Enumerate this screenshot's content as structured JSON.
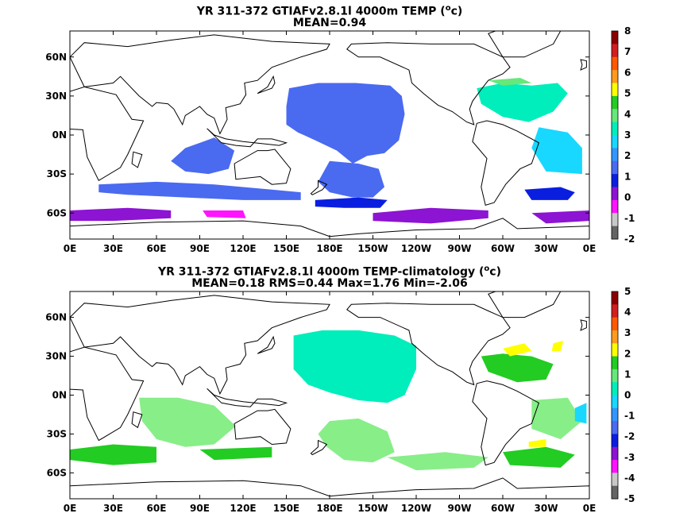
{
  "chart_data": [
    {
      "type": "heatmap",
      "title_prefix": "YR 311-372 GTIAFv2.8.1l 4000m TEMP (",
      "title_unit_base": "o",
      "title_unit_rest": "c)",
      "subtitle": "MEAN=0.94",
      "x_ticks": [
        "0E",
        "30E",
        "60E",
        "90E",
        "120E",
        "150E",
        "180E",
        "150W",
        "120W",
        "90W",
        "60W",
        "30W",
        "0E"
      ],
      "y_ticks": [
        "60N",
        "30N",
        "0N",
        "30S",
        "60S"
      ],
      "y_tick_values": [
        60,
        30,
        0,
        -30,
        -60
      ],
      "x_range": [
        0,
        360
      ],
      "y_range": [
        -80,
        80
      ],
      "colorbar_labels": [
        "8",
        "7",
        "6",
        "5",
        "4",
        "3",
        "2",
        "1",
        "0",
        "-1",
        "-2"
      ],
      "colorbar_values": [
        8,
        7,
        6,
        5,
        4,
        3,
        2,
        1,
        0,
        -1,
        -2
      ],
      "colorbar_colors": [
        "#8b0000",
        "#d21e1e",
        "#ff5a00",
        "#ff9b1e",
        "#ffff00",
        "#22cc22",
        "#66e87a",
        "#00eebb",
        "#18d8ff",
        "#3296ff",
        "#4a6af0",
        "#0a1ee0",
        "#8c14d2",
        "#ff14ff",
        "#c8c8c8",
        "#646464"
      ],
      "regions": [
        {
          "name": "north-pacific",
          "color": "#4a6af0",
          "poly": [
            [
              152,
              36
            ],
            [
              172,
              40
            ],
            [
              198,
              40
            ],
            [
              222,
              38
            ],
            [
              230,
              30
            ],
            [
              232,
              16
            ],
            [
              228,
              -4
            ],
            [
              218,
              -14
            ],
            [
              206,
              -16
            ],
            [
              196,
              -22
            ],
            [
              185,
              -12
            ],
            [
              170,
              -4
            ],
            [
              158,
              2
            ],
            [
              150,
              8
            ],
            [
              150,
              22
            ]
          ]
        },
        {
          "name": "south-pacific",
          "color": "#4a6af0",
          "poly": [
            [
              180,
              -20
            ],
            [
              200,
              -22
            ],
            [
              214,
              -26
            ],
            [
              218,
              -40
            ],
            [
              210,
              -48
            ],
            [
              196,
              -48
            ],
            [
              180,
              -44
            ],
            [
              172,
              -36
            ]
          ]
        },
        {
          "name": "indian-ocean",
          "color": "#4a6af0",
          "poly": [
            [
              80,
              -10
            ],
            [
              100,
              -2
            ],
            [
              114,
              -12
            ],
            [
              110,
              -26
            ],
            [
              96,
              -30
            ],
            [
              80,
              -28
            ],
            [
              70,
              -20
            ]
          ]
        },
        {
          "name": "indian-band",
          "color": "#4a6af0",
          "poly": [
            [
              20,
              -38
            ],
            [
              60,
              -36
            ],
            [
              100,
              -38
            ],
            [
              140,
              -42
            ],
            [
              160,
              -44
            ],
            [
              160,
              -50
            ],
            [
              120,
              -50
            ],
            [
              80,
              -48
            ],
            [
              40,
              -46
            ],
            [
              20,
              -44
            ]
          ]
        },
        {
          "name": "southern-deep",
          "color": "#0a1ee0",
          "poly": [
            [
              170,
              -50
            ],
            [
              200,
              -48
            ],
            [
              220,
              -50
            ],
            [
              215,
              -56
            ],
            [
              190,
              -56
            ],
            [
              170,
              -55
            ]
          ]
        },
        {
          "name": "weddell-deep",
          "color": "#0a1ee0",
          "poly": [
            [
              315,
              -42
            ],
            [
              340,
              -40
            ],
            [
              350,
              -44
            ],
            [
              345,
              -50
            ],
            [
              320,
              -50
            ]
          ]
        },
        {
          "name": "antarctic-1",
          "color": "#8c14d2",
          "poly": [
            [
              0,
              -58
            ],
            [
              40,
              -56
            ],
            [
              70,
              -58
            ],
            [
              70,
              -64
            ],
            [
              30,
              -66
            ],
            [
              0,
              -66
            ]
          ]
        },
        {
          "name": "antarctic-2",
          "color": "#8c14d2",
          "poly": [
            [
              210,
              -60
            ],
            [
              250,
              -56
            ],
            [
              290,
              -58
            ],
            [
              290,
              -64
            ],
            [
              250,
              -68
            ],
            [
              210,
              -66
            ]
          ]
        },
        {
          "name": "antarctic-3",
          "color": "#8c14d2",
          "poly": [
            [
              320,
              -60
            ],
            [
              360,
              -58
            ],
            [
              360,
              -66
            ],
            [
              330,
              -68
            ]
          ]
        },
        {
          "name": "antarctic-magenta",
          "color": "#ff14ff",
          "poly": [
            [
              92,
              -58
            ],
            [
              120,
              -58
            ],
            [
              122,
              -64
            ],
            [
              95,
              -63
            ]
          ]
        },
        {
          "name": "north-atlantic",
          "color": "#00eebb",
          "poly": [
            [
              282,
              36
            ],
            [
              300,
              40
            ],
            [
              320,
              38
            ],
            [
              338,
              40
            ],
            [
              345,
              32
            ],
            [
              335,
              18
            ],
            [
              318,
              10
            ],
            [
              300,
              14
            ],
            [
              285,
              24
            ]
          ]
        },
        {
          "name": "atlantic-green",
          "color": "#66e87a",
          "poly": [
            [
              290,
              42
            ],
            [
              312,
              44
            ],
            [
              320,
              40
            ],
            [
              300,
              38
            ]
          ]
        },
        {
          "name": "south-atlantic",
          "color": "#18d8ff",
          "poly": [
            [
              325,
              6
            ],
            [
              345,
              2
            ],
            [
              355,
              -10
            ],
            [
              355,
              -30
            ],
            [
              330,
              -28
            ],
            [
              320,
              -10
            ]
          ]
        }
      ]
    },
    {
      "type": "heatmap",
      "title_prefix": "YR 311-372 GTIAFv2.8.1l 4000m TEMP-climatology (",
      "title_unit_base": "o",
      "title_unit_rest": "c)",
      "subtitle": "MEAN=0.18   RMS=0.44   Max=1.76   Min=-2.06",
      "x_ticks": [
        "0E",
        "30E",
        "60E",
        "90E",
        "120E",
        "150E",
        "180E",
        "150W",
        "120W",
        "90W",
        "60W",
        "30W",
        "0E"
      ],
      "y_ticks": [
        "60N",
        "30N",
        "0N",
        "30S",
        "60S"
      ],
      "y_tick_values": [
        60,
        30,
        0,
        -30,
        -60
      ],
      "x_range": [
        0,
        360
      ],
      "y_range": [
        -80,
        80
      ],
      "colorbar_labels": [
        "5",
        "4",
        "3",
        "2",
        "1",
        "0",
        "-1",
        "-2",
        "-3",
        "-4",
        "-5"
      ],
      "colorbar_values": [
        5,
        4,
        3,
        2,
        1,
        0,
        -1,
        -2,
        -3,
        -4,
        -5
      ],
      "colorbar_colors": [
        "#8b0000",
        "#d21e1e",
        "#ff5a00",
        "#ff9b1e",
        "#ffff00",
        "#22cc22",
        "#66e87a",
        "#00eebb",
        "#18d8ff",
        "#3296ff",
        "#4a6af0",
        "#0a1ee0",
        "#8c14d2",
        "#ff14ff",
        "#c8c8c8",
        "#646464"
      ],
      "regions": [
        {
          "name": "north-pacific",
          "color": "#00eebb",
          "poly": [
            [
              155,
              46
            ],
            [
              175,
              50
            ],
            [
              200,
              50
            ],
            [
              225,
              46
            ],
            [
              240,
              38
            ],
            [
              240,
              20
            ],
            [
              232,
              0
            ],
            [
              220,
              -6
            ],
            [
              200,
              -4
            ],
            [
              180,
              2
            ],
            [
              165,
              8
            ],
            [
              155,
              20
            ]
          ]
        },
        {
          "name": "south-pacific",
          "color": "#88ee88",
          "poly": [
            [
              180,
              -20
            ],
            [
              200,
              -18
            ],
            [
              220,
              -28
            ],
            [
              225,
              -44
            ],
            [
              210,
              -52
            ],
            [
              190,
              -50
            ],
            [
              178,
              -40
            ],
            [
              172,
              -30
            ]
          ]
        },
        {
          "name": "indian-ocean",
          "color": "#88ee88",
          "poly": [
            [
              48,
              -2
            ],
            [
              75,
              -2
            ],
            [
              100,
              -8
            ],
            [
              115,
              -24
            ],
            [
              100,
              -38
            ],
            [
              80,
              -40
            ],
            [
              60,
              -34
            ],
            [
              50,
              -20
            ]
          ]
        },
        {
          "name": "west-indian-green",
          "color": "#22cc22",
          "poly": [
            [
              0,
              -42
            ],
            [
              30,
              -38
            ],
            [
              60,
              -40
            ],
            [
              60,
              -52
            ],
            [
              30,
              -54
            ],
            [
              0,
              -50
            ]
          ]
        },
        {
          "name": "south-indian-green",
          "color": "#22cc22",
          "poly": [
            [
              90,
              -42
            ],
            [
              140,
              -40
            ],
            [
              140,
              -48
            ],
            [
              100,
              -50
            ]
          ]
        },
        {
          "name": "south-pacific-green",
          "color": "#88ee88",
          "poly": [
            [
              220,
              -48
            ],
            [
              260,
              -44
            ],
            [
              290,
              -48
            ],
            [
              280,
              -56
            ],
            [
              240,
              -58
            ]
          ]
        },
        {
          "name": "atlantic-green",
          "color": "#22cc22",
          "poly": [
            [
              285,
              30
            ],
            [
              300,
              32
            ],
            [
              320,
              30
            ],
            [
              335,
              24
            ],
            [
              330,
              12
            ],
            [
              310,
              10
            ],
            [
              290,
              18
            ]
          ]
        },
        {
          "name": "atlantic-yellow",
          "color": "#ffff00",
          "poly": [
            [
              300,
              36
            ],
            [
              315,
              40
            ],
            [
              320,
              34
            ],
            [
              305,
              30
            ]
          ]
        },
        {
          "name": "atlantic-yellow-2",
          "color": "#ffff00",
          "poly": [
            [
              335,
              40
            ],
            [
              342,
              42
            ],
            [
              340,
              34
            ],
            [
              334,
              34
            ]
          ]
        },
        {
          "name": "south-atlantic-green",
          "color": "#88ee88",
          "poly": [
            [
              320,
              -4
            ],
            [
              345,
              -2
            ],
            [
              355,
              -20
            ],
            [
              340,
              -34
            ],
            [
              320,
              -26
            ]
          ]
        },
        {
          "name": "south-atlantic-lg",
          "color": "#22cc22",
          "poly": [
            [
              300,
              -44
            ],
            [
              330,
              -40
            ],
            [
              350,
              -46
            ],
            [
              340,
              -56
            ],
            [
              305,
              -54
            ]
          ]
        },
        {
          "name": "south-atlantic-yellow",
          "color": "#ffff00",
          "poly": [
            [
              318,
              -36
            ],
            [
              330,
              -34
            ],
            [
              330,
              -40
            ],
            [
              318,
              -40
            ]
          ]
        },
        {
          "name": "east-atlantic-cyan",
          "color": "#18d8ff",
          "poly": [
            [
              350,
              -10
            ],
            [
              358,
              -6
            ],
            [
              358,
              -22
            ],
            [
              350,
              -20
            ]
          ]
        }
      ]
    }
  ]
}
